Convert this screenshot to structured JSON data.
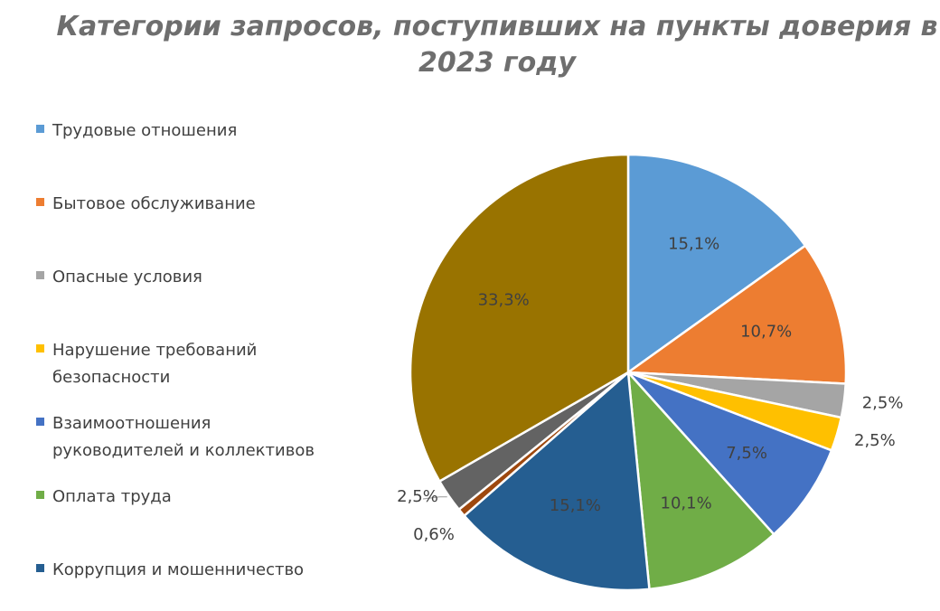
{
  "chart_data": {
    "type": "pie",
    "title": "Категории запросов, поступивших на пункты доверия в 2023 году",
    "legend_position": "left",
    "slices": [
      {
        "name": "Трудовые отношения",
        "value": 15.1,
        "label": "15,1%",
        "color": "#5b9bd5"
      },
      {
        "name": "Бытовое обслуживание",
        "value": 10.7,
        "label": "10,7%",
        "color": "#ed7d31"
      },
      {
        "name": "Опасные условия",
        "value": 2.5,
        "label": "2,5%",
        "color": "#a5a5a5"
      },
      {
        "name": "Нарушение требований безопасности",
        "value": 2.5,
        "label": "2,5%",
        "color": "#ffc000"
      },
      {
        "name": "Взаимоотношения руководителей и коллективов",
        "value": 7.5,
        "label": "7,5%",
        "color": "#4472c4"
      },
      {
        "name": "Оплата труда",
        "value": 10.1,
        "label": "10,1%",
        "color": "#70ad47"
      },
      {
        "name": "Коррупция и мошенничество",
        "value": 15.1,
        "label": "15,1%",
        "color": "#255e91"
      },
      {
        "name": "",
        "value": 0.6,
        "label": "0,6%",
        "color": "#9e480e"
      },
      {
        "name": "",
        "value": 2.5,
        "label": "2,5%",
        "color": "#636363"
      },
      {
        "name": "",
        "value": 33.3,
        "label": "33,3%",
        "color": "#997300"
      }
    ]
  }
}
